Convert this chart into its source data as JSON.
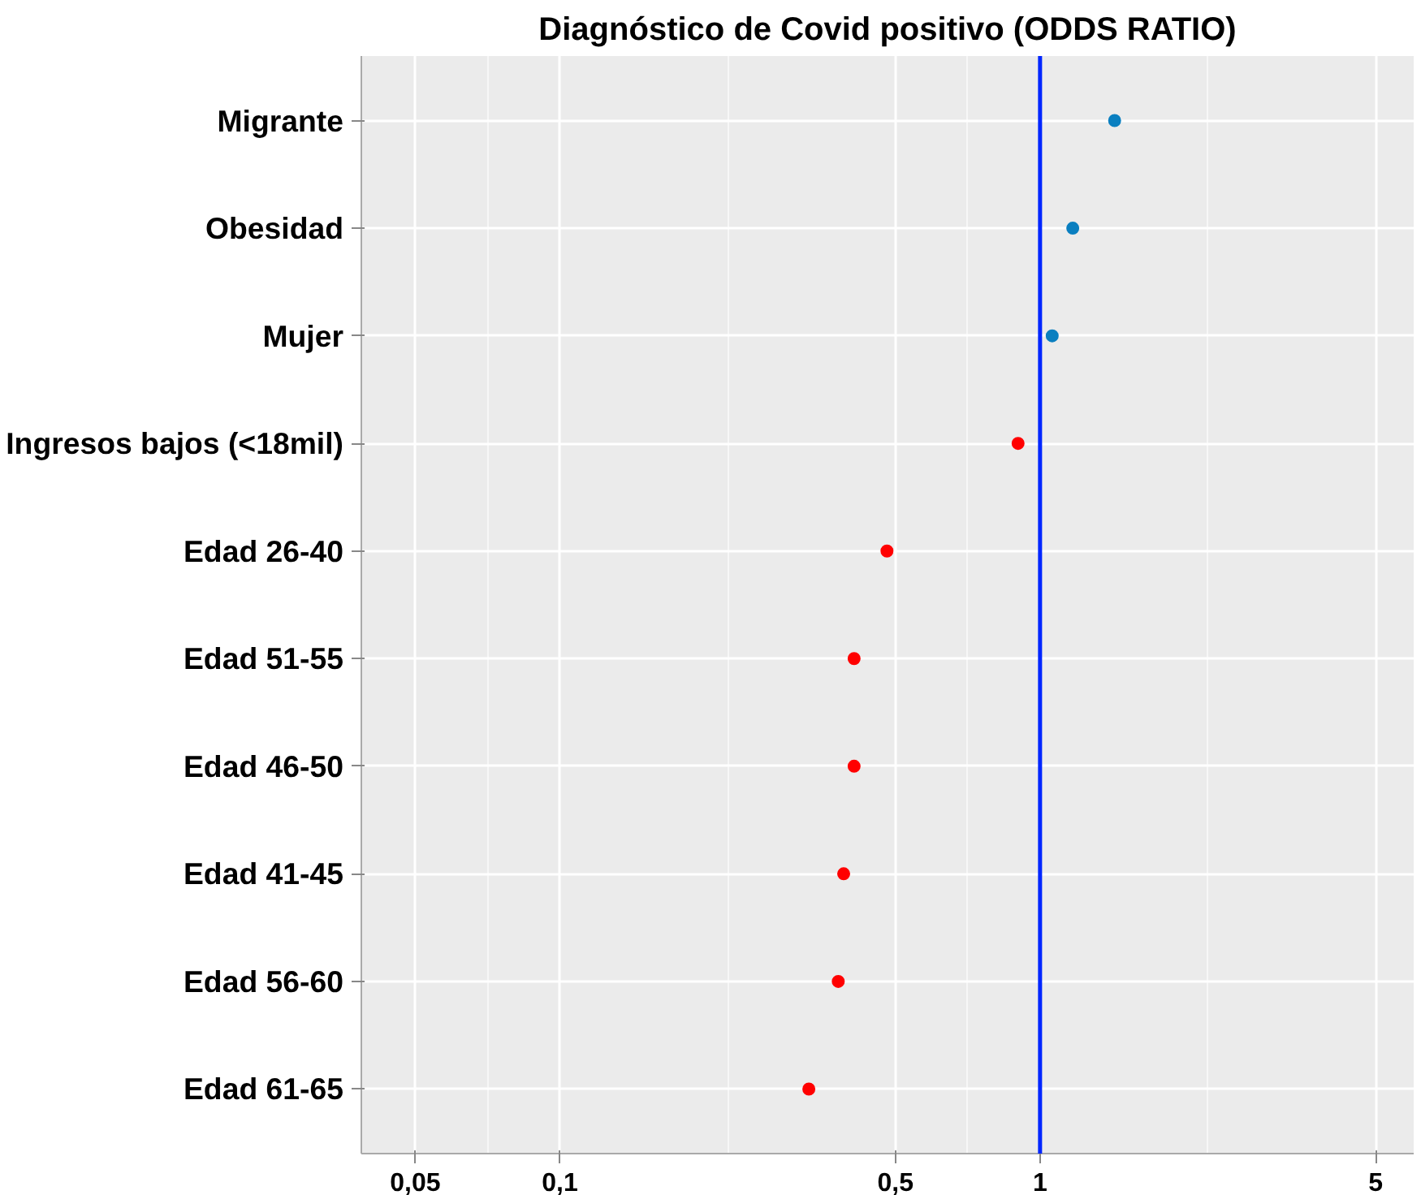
{
  "chart_data": {
    "type": "scatter",
    "title": "Diagnóstico de Covid positivo (ODDS RATIO)",
    "categories": [
      "Migrante",
      "Obesidad",
      "Mujer",
      "Ingresos bajos (<18mil)",
      "Edad 26-40",
      "Edad 51-55",
      "Edad 46-50",
      "Edad 41-45",
      "Edad 56-60",
      "Edad 61-65"
    ],
    "values": [
      1.43,
      1.17,
      1.06,
      0.9,
      0.48,
      0.41,
      0.41,
      0.39,
      0.38,
      0.33
    ],
    "colors": [
      "#0a7fc0",
      "#0a7fc0",
      "#0a7fc0",
      "#ff0000",
      "#ff0000",
      "#ff0000",
      "#ff0000",
      "#ff0000",
      "#ff0000",
      "#ff0000"
    ],
    "orientation": "horizontal",
    "log": "x",
    "xlim": [
      0.0386,
      6.0
    ],
    "xticks": [
      {
        "value": 0.05,
        "label": "0,05"
      },
      {
        "value": 0.1,
        "label": "0,1"
      },
      {
        "value": 0.5,
        "label": "0,5"
      },
      {
        "value": 1,
        "label": "1"
      },
      {
        "value": 5,
        "label": "5"
      }
    ],
    "ref_lines": [
      {
        "axis": "x",
        "value": 1,
        "label": null,
        "color": "#0026ff",
        "line_style": "solid"
      }
    ],
    "grid": true,
    "marker": "circle"
  }
}
